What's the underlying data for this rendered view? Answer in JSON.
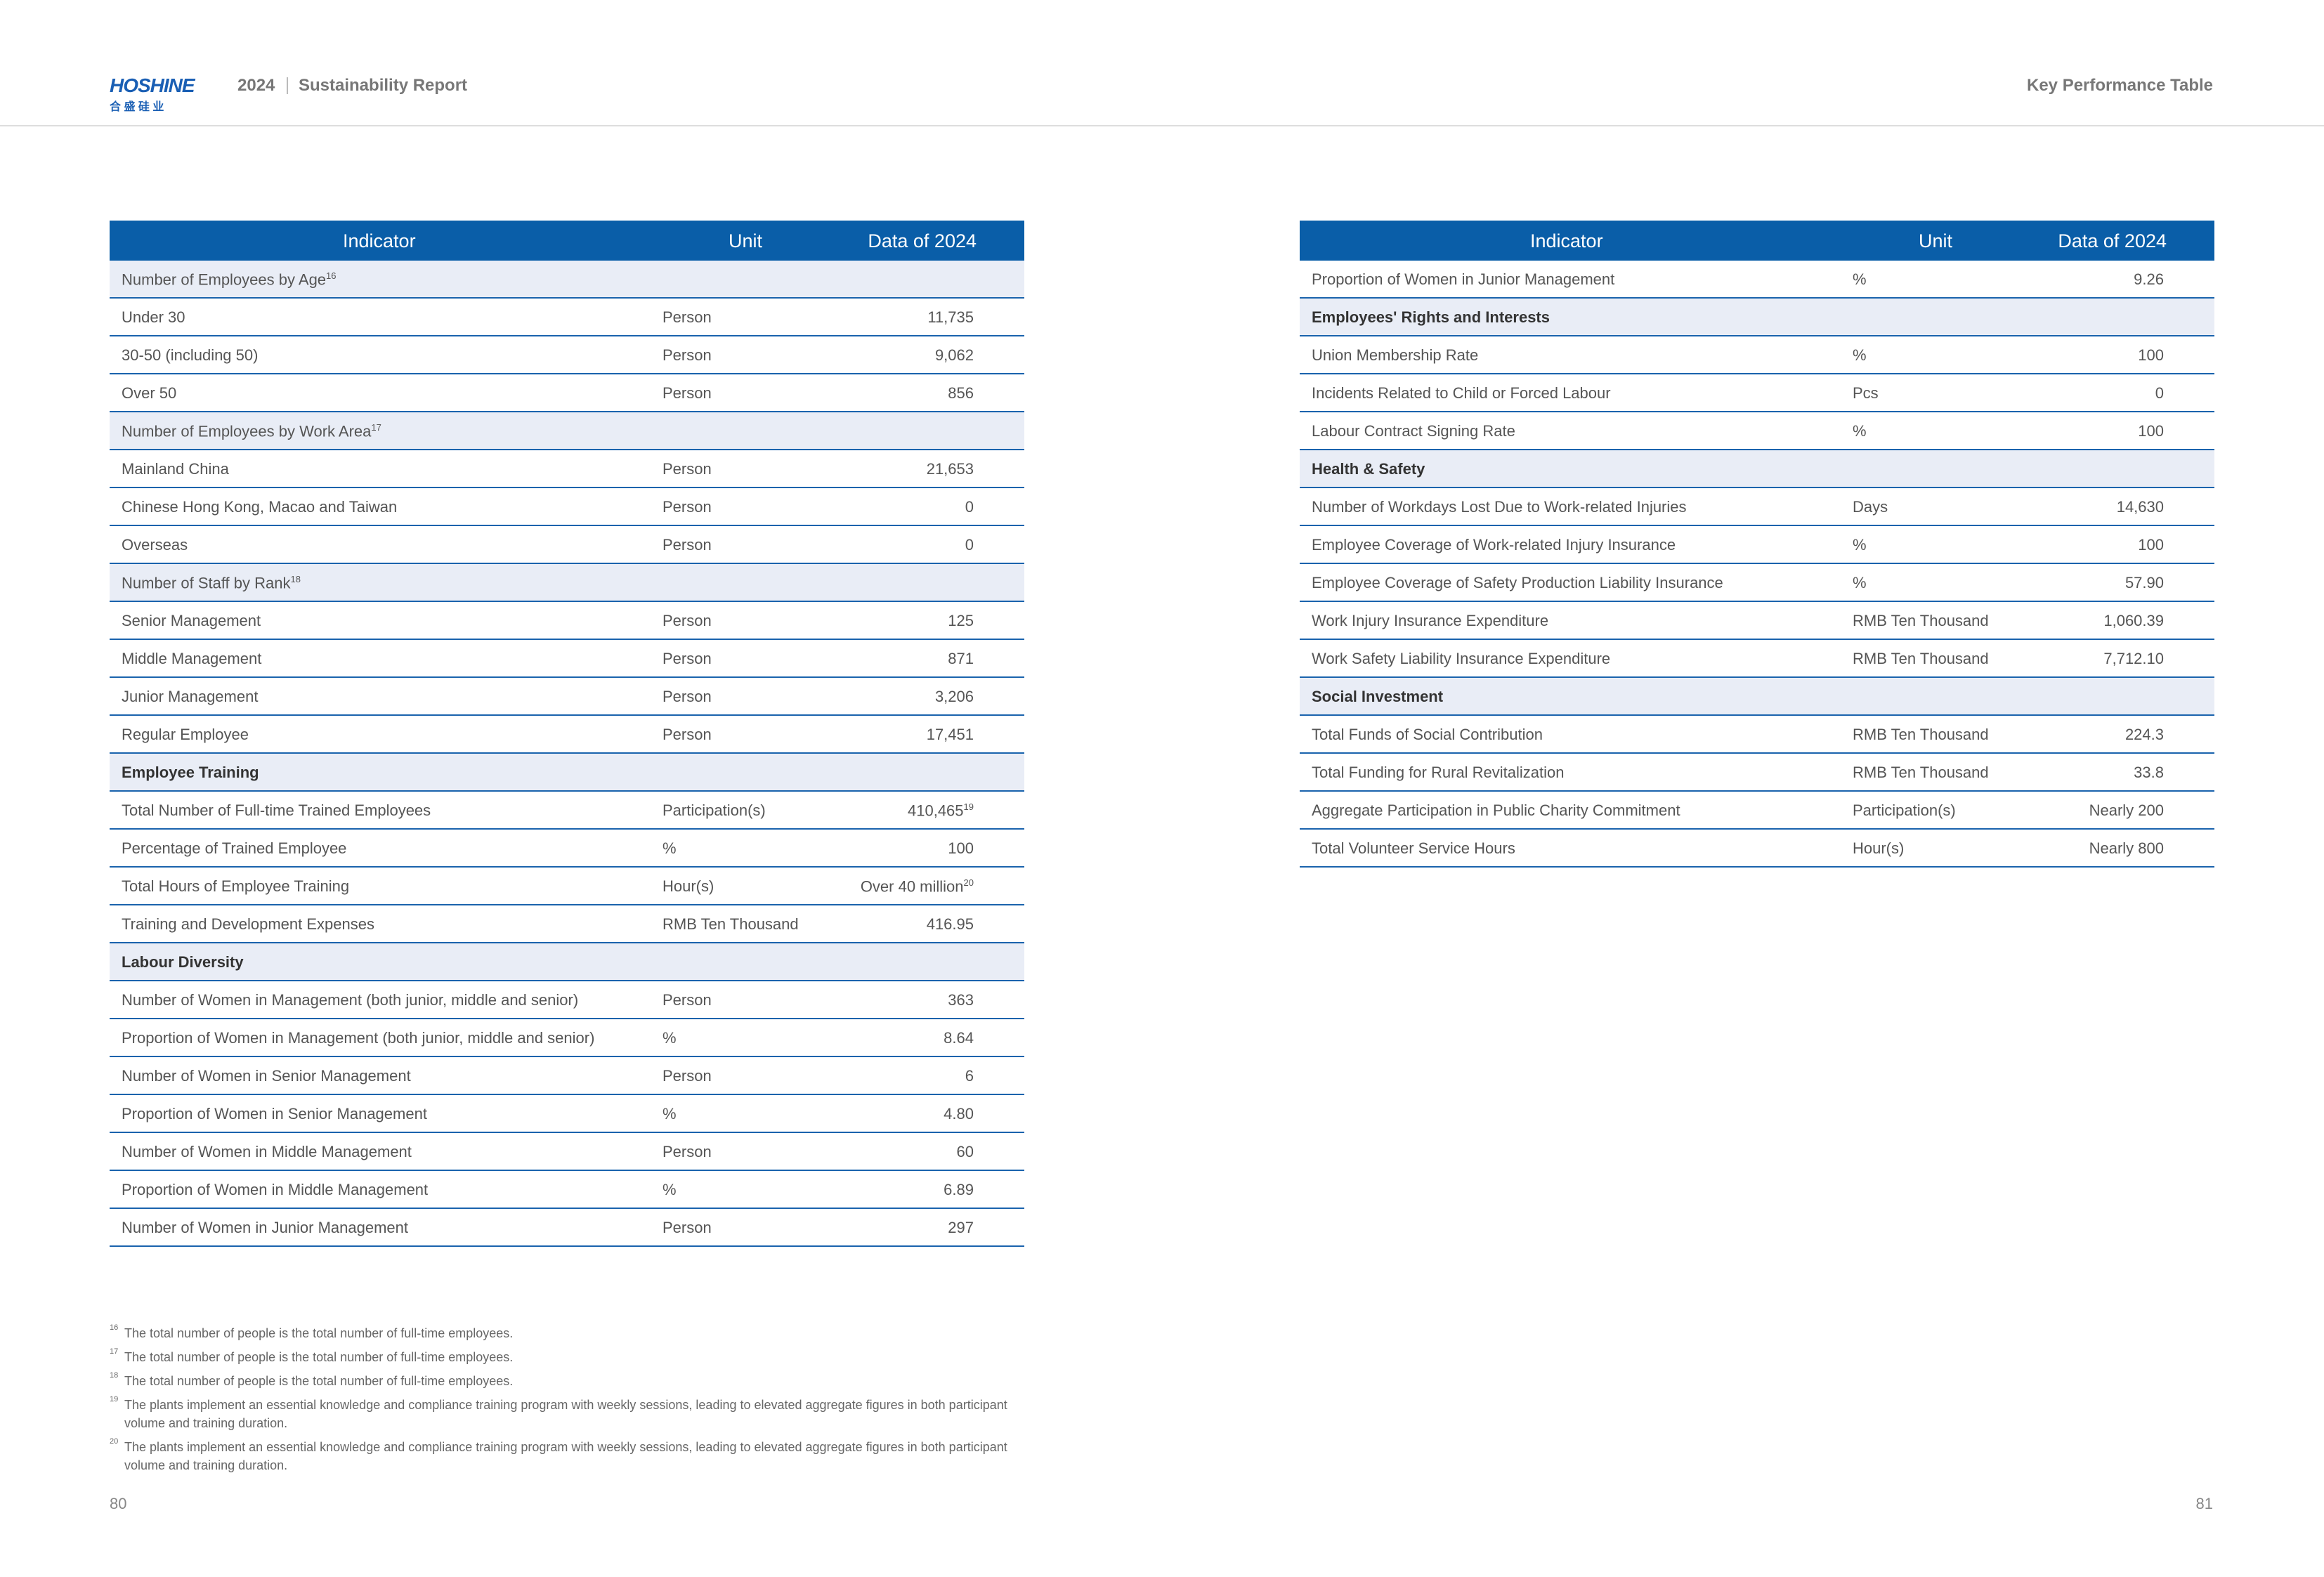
{
  "header": {
    "logo": {
      "name": "HOSHINE",
      "chinese": "合 盛 硅 业"
    },
    "year": "2024",
    "report": "Sustainability Report",
    "section": "Key Performance Table"
  },
  "tables": [
    {
      "columns": [
        "Indicator",
        "Unit",
        "Data of 2024"
      ],
      "rows": [
        {
          "heading": "Number of Employees by Age",
          "note": "16",
          "bold": false
        },
        {
          "indicator": "Under 30",
          "unit": "Person",
          "value": "11,735"
        },
        {
          "indicator": "30-50 (including 50)",
          "unit": "Person",
          "value": "9,062"
        },
        {
          "indicator": "Over 50",
          "unit": "Person",
          "value": "856"
        },
        {
          "heading": "Number of Employees by Work Area",
          "note": "17",
          "bold": false
        },
        {
          "indicator": "Mainland China",
          "unit": "Person",
          "value": "21,653"
        },
        {
          "indicator": "Chinese Hong Kong, Macao and Taiwan",
          "unit": "Person",
          "value": "0"
        },
        {
          "indicator": "Overseas",
          "unit": "Person",
          "value": "0"
        },
        {
          "heading": "Number of Staff by Rank",
          "note": "18",
          "bold": false
        },
        {
          "indicator": "Senior Management",
          "unit": "Person",
          "value": "125"
        },
        {
          "indicator": "Middle Management",
          "unit": "Person",
          "value": "871"
        },
        {
          "indicator": "Junior Management",
          "unit": "Person",
          "value": "3,206"
        },
        {
          "indicator": "Regular Employee",
          "unit": "Person",
          "value": "17,451"
        },
        {
          "heading": "Employee Training",
          "bold": true
        },
        {
          "indicator": "Total Number of Full-time Trained Employees",
          "unit": "Participation(s)",
          "value": "410,465",
          "note": "19"
        },
        {
          "indicator": "Percentage of Trained Employee",
          "unit": "%",
          "value": "100"
        },
        {
          "indicator": "Total Hours of Employee Training",
          "unit": "Hour(s)",
          "value": "Over 40 million",
          "note": "20"
        },
        {
          "indicator": "Training and Development Expenses",
          "unit": "RMB Ten Thousand",
          "value": "416.95"
        },
        {
          "heading": "Labour Diversity",
          "bold": true
        },
        {
          "indicator": "Number of Women in Management (both junior, middle and senior)",
          "unit": "Person",
          "value": "363"
        },
        {
          "indicator": "Proportion of Women in Management (both junior, middle and senior)",
          "unit": "%",
          "value": "8.64"
        },
        {
          "indicator": "Number of Women in Senior Management",
          "unit": "Person",
          "value": "6"
        },
        {
          "indicator": "Proportion of Women in Senior Management",
          "unit": "%",
          "value": "4.80"
        },
        {
          "indicator": "Number of Women in Middle Management",
          "unit": "Person",
          "value": "60"
        },
        {
          "indicator": "Proportion of Women in Middle Management",
          "unit": "%",
          "value": "6.89"
        },
        {
          "indicator": "Number of Women in Junior Management",
          "unit": "Person",
          "value": "297"
        }
      ]
    },
    {
      "columns": [
        "Indicator",
        "Unit",
        "Data of 2024"
      ],
      "rows": [
        {
          "indicator": "Proportion of Women in Junior Management",
          "unit": "%",
          "value": "9.26"
        },
        {
          "heading": "Employees' Rights and Interests",
          "bold": true
        },
        {
          "indicator": "Union Membership Rate",
          "unit": "%",
          "value": "100"
        },
        {
          "indicator": "Incidents Related to Child or Forced Labour",
          "unit": "Pcs",
          "value": "0"
        },
        {
          "indicator": "Labour Contract Signing Rate",
          "unit": "%",
          "value": "100"
        },
        {
          "heading": "Health & Safety",
          "bold": true
        },
        {
          "indicator": "Number of Workdays Lost Due to Work-related Injuries",
          "unit": "Days",
          "value": "14,630"
        },
        {
          "indicator": "Employee Coverage of Work-related Injury Insurance",
          "unit": "%",
          "value": "100"
        },
        {
          "indicator": "Employee Coverage of Safety Production Liability Insurance",
          "unit": "%",
          "value": "57.90"
        },
        {
          "indicator": "Work Injury Insurance Expenditure",
          "unit": "RMB Ten Thousand",
          "value": "1,060.39"
        },
        {
          "indicator": "Work Safety Liability Insurance Expenditure",
          "unit": "RMB Ten Thousand",
          "value": "7,712.10"
        },
        {
          "heading": "Social Investment",
          "bold": true
        },
        {
          "indicator": "Total Funds of Social Contribution",
          "unit": "RMB Ten Thousand",
          "value": "224.3"
        },
        {
          "indicator": "Total Funding for Rural Revitalization",
          "unit": "RMB Ten Thousand",
          "value": "33.8"
        },
        {
          "indicator": "Aggregate Participation in Public Charity Commitment",
          "unit": "Participation(s)",
          "value": "Nearly 200"
        },
        {
          "indicator": "Total Volunteer Service Hours",
          "unit": "Hour(s)",
          "value": "Nearly 800"
        }
      ]
    }
  ],
  "footnotes": [
    {
      "mark": "16",
      "text": "The total number of people is the total number of full-time employees."
    },
    {
      "mark": "17",
      "text": "The total number of people is the total number of full-time employees."
    },
    {
      "mark": "18",
      "text": "The total number of people is the total number of full-time employees."
    },
    {
      "mark": "19",
      "text": "The plants implement an essential knowledge and compliance training program with weekly sessions, leading to elevated aggregate figures in both participant volume and training duration."
    },
    {
      "mark": "20",
      "text": "The plants implement an essential knowledge and compliance training program with weekly sessions, leading to elevated aggregate figures in both participant volume and training duration."
    }
  ],
  "pages": [
    "80",
    "81"
  ]
}
